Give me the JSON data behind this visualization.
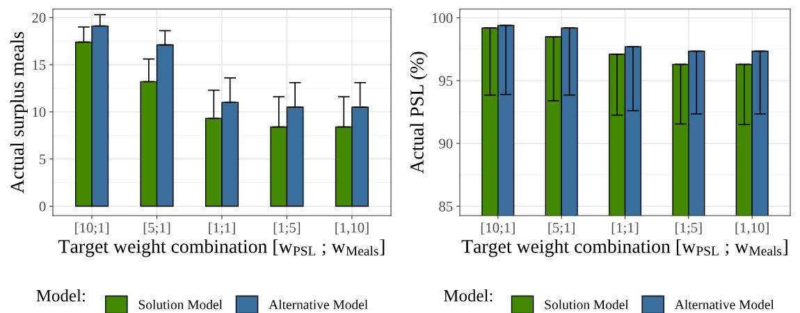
{
  "chart_data": [
    {
      "type": "bar",
      "xlabel": "Target weight combination [w$_{PSL}$ ; w$_{Meals}$]",
      "ylabel": "Actual surplus meals",
      "legend_title": "Model:",
      "legend": "bottom",
      "grid": true,
      "categories": [
        "[10;1]",
        "[5;1]",
        "[1;1]",
        "[1;5]",
        "[1,10]"
      ],
      "ylim": [
        -1.0,
        20.9
      ],
      "yticks": [
        0,
        5,
        10,
        15,
        20
      ],
      "series": [
        {
          "name": "Solution Model",
          "color": "#448800",
          "values": [
            17.4,
            13.2,
            9.3,
            8.4,
            8.4
          ],
          "errors": [
            [
              17.4,
              19.0
            ],
            [
              13.2,
              15.6
            ],
            [
              9.3,
              12.3
            ],
            [
              8.4,
              11.6
            ],
            [
              8.4,
              11.6
            ]
          ]
        },
        {
          "name": "Alternative Model",
          "color": "#3a6e9c",
          "values": [
            19.1,
            17.1,
            11.0,
            10.5,
            10.5
          ],
          "errors": [
            [
              19.1,
              20.3
            ],
            [
              17.1,
              18.6
            ],
            [
              11.0,
              13.6
            ],
            [
              10.5,
              13.1
            ],
            [
              10.5,
              13.1
            ]
          ]
        }
      ]
    },
    {
      "type": "bar",
      "xlabel": "Target weight combination [w$_{PSL}$ ; w$_{Meals}$]",
      "ylabel": "Actual PSL (%)",
      "legend_title": "Model:",
      "legend": "bottom",
      "grid": true,
      "categories": [
        "[10;1]",
        "[5;1]",
        "[1;1]",
        "[1;5]",
        "[1,10]"
      ],
      "ylim": [
        84.25,
        100.7
      ],
      "yticks": [
        85,
        90,
        95,
        100
      ],
      "series": [
        {
          "name": "Solution Model",
          "color": "#448800",
          "values": [
            99.2,
            98.5,
            97.1,
            96.3,
            96.3
          ],
          "errors": [
            [
              93.85,
              99.2
            ],
            [
              93.4,
              98.5
            ],
            [
              92.25,
              97.1
            ],
            [
              91.55,
              96.3
            ],
            [
              91.5,
              96.3
            ]
          ]
        },
        {
          "name": "Alternative Model",
          "color": "#3a6e9c",
          "values": [
            99.4,
            99.2,
            97.7,
            97.35,
            97.35
          ],
          "errors": [
            [
              93.9,
              99.4
            ],
            [
              93.85,
              99.2
            ],
            [
              92.6,
              97.7
            ],
            [
              92.35,
              97.35
            ],
            [
              92.35,
              97.35
            ]
          ]
        }
      ]
    }
  ]
}
